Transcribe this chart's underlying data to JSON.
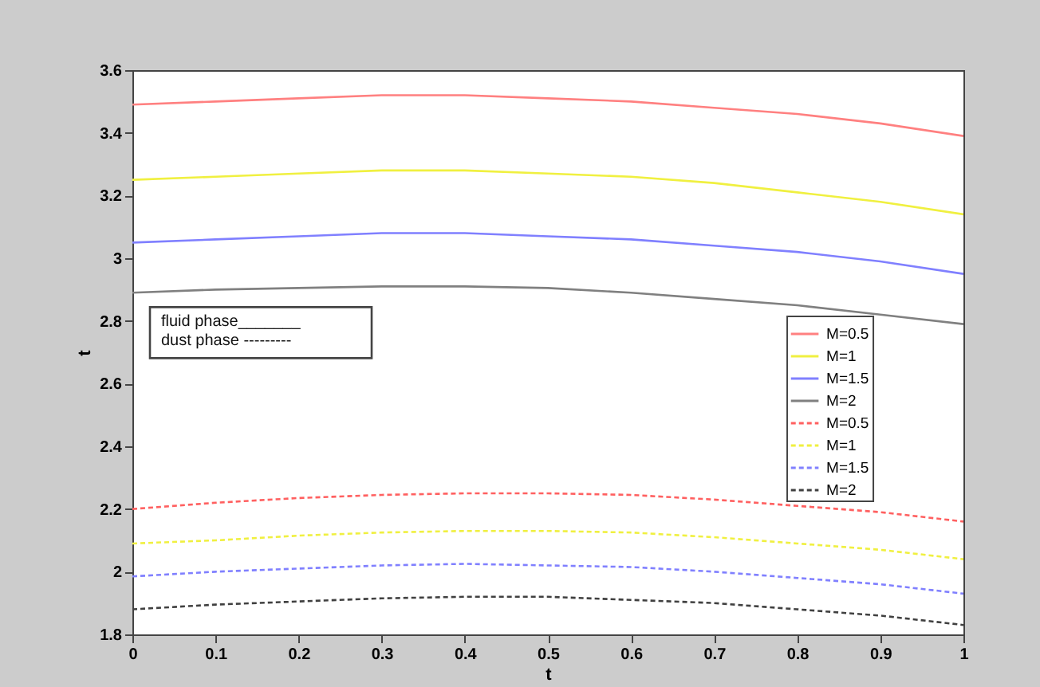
{
  "chart_data": {
    "type": "line",
    "xlabel": "t",
    "ylabel": "t",
    "x": [
      0,
      0.1,
      0.2,
      0.3,
      0.4,
      0.5,
      0.6,
      0.7,
      0.8,
      0.9,
      1
    ],
    "xlim": [
      0,
      1
    ],
    "xticks": [
      0,
      0.1,
      0.2,
      0.3,
      0.4,
      0.5,
      0.6,
      0.7,
      0.8,
      0.9,
      1
    ],
    "ylim": [
      1.8,
      3.6
    ],
    "yticks": [
      1.8,
      2,
      2.2,
      2.4,
      2.6,
      2.8,
      3,
      3.2,
      3.4,
      3.6
    ],
    "grid": false,
    "legend": "right",
    "marker": "none",
    "annotations": [
      "fluid phase_______",
      "dust phase ---------"
    ],
    "series": [
      {
        "name": "M=0.5",
        "color": "#ff8080",
        "line_style": "solid",
        "values": [
          3.49,
          3.5,
          3.51,
          3.52,
          3.52,
          3.51,
          3.5,
          3.48,
          3.46,
          3.43,
          3.39
        ]
      },
      {
        "name": "M=1",
        "color": "#f0f040",
        "line_style": "solid",
        "values": [
          3.25,
          3.26,
          3.27,
          3.28,
          3.28,
          3.27,
          3.26,
          3.24,
          3.21,
          3.18,
          3.14
        ]
      },
      {
        "name": "M=1.5",
        "color": "#8080ff",
        "line_style": "solid",
        "values": [
          3.05,
          3.06,
          3.07,
          3.08,
          3.08,
          3.07,
          3.06,
          3.04,
          3.02,
          2.99,
          2.95
        ]
      },
      {
        "name": "M=2",
        "color": "#808080",
        "line_style": "solid",
        "values": [
          2.89,
          2.9,
          2.905,
          2.91,
          2.91,
          2.905,
          2.89,
          2.87,
          2.85,
          2.82,
          2.79
        ]
      },
      {
        "name": "M=0.5",
        "color": "#ff6060",
        "line_style": "dashed",
        "values": [
          2.2,
          2.22,
          2.235,
          2.245,
          2.25,
          2.25,
          2.245,
          2.23,
          2.21,
          2.19,
          2.16
        ]
      },
      {
        "name": "M=1",
        "color": "#f0f040",
        "line_style": "dashed",
        "values": [
          2.09,
          2.1,
          2.115,
          2.125,
          2.13,
          2.13,
          2.125,
          2.11,
          2.09,
          2.07,
          2.04
        ]
      },
      {
        "name": "M=1.5",
        "color": "#8080ff",
        "line_style": "dashed",
        "values": [
          1.985,
          2,
          2.01,
          2.02,
          2.025,
          2.02,
          2.015,
          2,
          1.98,
          1.96,
          1.93
        ]
      },
      {
        "name": "M=2",
        "color": "#404040",
        "line_style": "dashed",
        "values": [
          1.88,
          1.895,
          1.905,
          1.915,
          1.92,
          1.92,
          1.91,
          1.9,
          1.88,
          1.86,
          1.83
        ]
      }
    ]
  }
}
